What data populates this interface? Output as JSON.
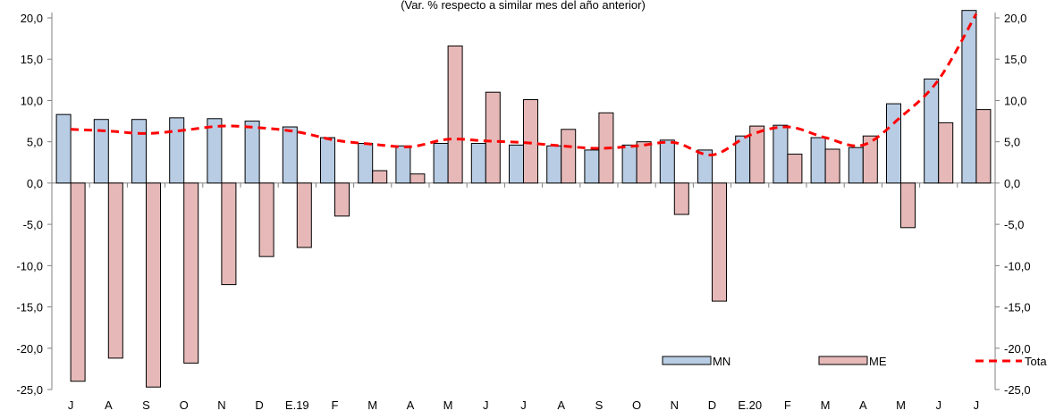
{
  "chart_data": {
    "type": "bar",
    "subtitle": "(Var. % respecto a similar mes del año anterior)",
    "categories": [
      "J",
      "A",
      "S",
      "O",
      "N",
      "D",
      "E.19",
      "F",
      "M",
      "A",
      "M",
      "J",
      "J",
      "A",
      "S",
      "O",
      "N",
      "D",
      "E.20",
      "F",
      "M",
      "A",
      "M",
      "J",
      "J"
    ],
    "series": [
      {
        "name": "MN",
        "type": "bar",
        "color": "#b8cce4",
        "values": [
          8.3,
          7.7,
          7.7,
          7.9,
          7.8,
          7.5,
          6.8,
          5.5,
          4.8,
          4.5,
          4.8,
          4.8,
          4.6,
          4.5,
          4.0,
          4.6,
          5.2,
          4.0,
          5.7,
          7.0,
          5.5,
          4.3,
          9.6,
          12.6,
          20.9
        ]
      },
      {
        "name": "ME",
        "type": "bar",
        "color": "#e6b9b8",
        "values": [
          -24.0,
          -21.2,
          -24.7,
          -21.8,
          -12.3,
          -8.9,
          -7.8,
          -4.0,
          1.5,
          1.1,
          16.6,
          11.0,
          10.1,
          6.5,
          8.5,
          5.0,
          -3.8,
          -14.3,
          6.9,
          3.5,
          4.1,
          5.7,
          -5.4,
          7.3,
          8.9
        ]
      },
      {
        "name": "Total",
        "type": "line",
        "color": "#ff0000",
        "values": [
          6.5,
          6.3,
          6.0,
          6.4,
          6.9,
          6.7,
          6.2,
          5.2,
          4.7,
          4.4,
          5.3,
          5.1,
          4.9,
          4.5,
          4.2,
          4.5,
          4.9,
          3.4,
          5.8,
          6.8,
          5.5,
          4.6,
          8.0,
          12.5,
          20.5
        ]
      }
    ],
    "ylim": [
      -25,
      20
    ],
    "yticks": [
      "20,0",
      "15,0",
      "10,0",
      "5,0",
      "0,0",
      "-5,0",
      "-10,0",
      "-15,0",
      "-20,0",
      "-25,0"
    ],
    "ytick_values": [
      20,
      15,
      10,
      5,
      0,
      -5,
      -10,
      -15,
      -20,
      -25
    ],
    "legend": {
      "position": "bottom-right",
      "items": [
        "MN",
        "ME",
        "Total"
      ]
    },
    "grid": false
  }
}
